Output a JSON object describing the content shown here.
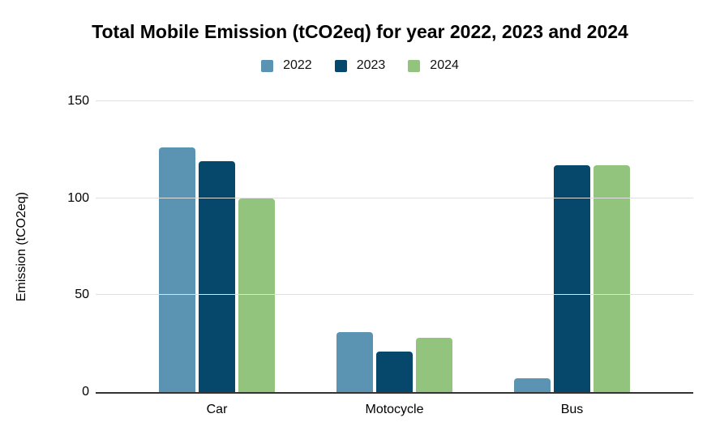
{
  "chart_data": {
    "type": "bar",
    "title": "Total Mobile Emission (tCO2eq) for year 2022, 2023 and 2024",
    "categories": [
      "Car",
      "Motocycle",
      "Bus"
    ],
    "series": [
      {
        "name": "2022",
        "color": "#5B93B2",
        "values": [
          126,
          31,
          7
        ]
      },
      {
        "name": "2023",
        "color": "#05486B",
        "values": [
          119,
          21,
          117
        ]
      },
      {
        "name": "2024",
        "color": "#93C47D",
        "values": [
          100,
          28,
          117
        ]
      }
    ],
    "xlabel": "",
    "ylabel": "Emission (tCO2eq)",
    "ylim": [
      0,
      150
    ],
    "yticks": [
      0,
      50,
      100,
      150
    ],
    "grid": true,
    "legend_position": "top"
  },
  "style": {
    "background": "#ffffff",
    "gridline_color": "#e0e0e0",
    "axis_color": "#333333",
    "text_color": "#000000"
  }
}
